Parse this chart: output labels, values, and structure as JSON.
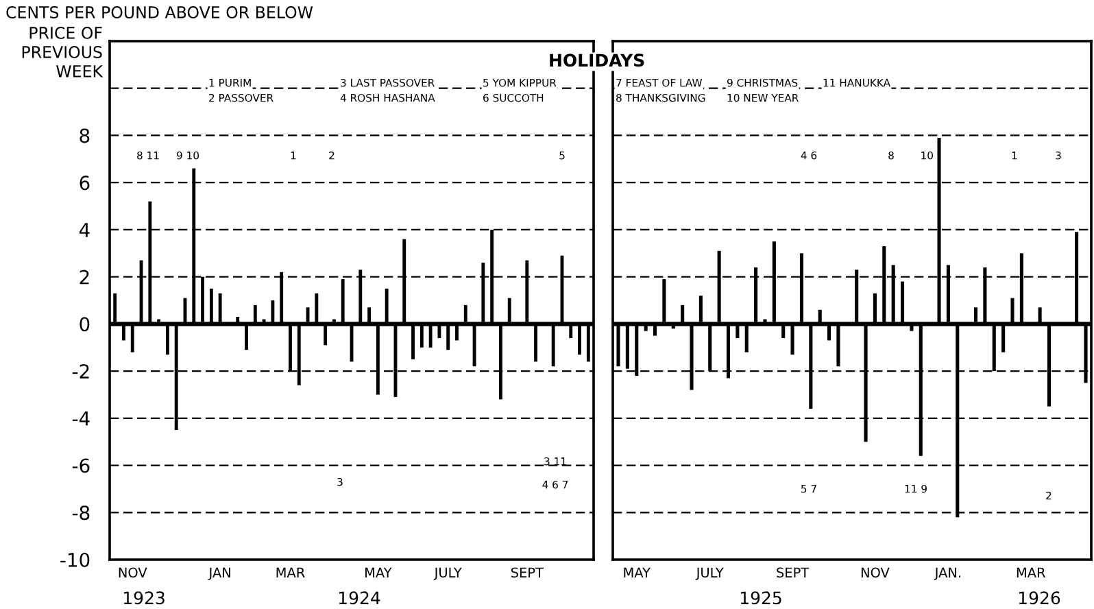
{
  "chart_data": [
    {
      "type": "bar",
      "ylabel": "CENTS PER POUND ABOVE OR BELOW\nPRICE OF\nPREVIOUS\nWEEK",
      "categories": [
        null,
        null,
        "NOV",
        null,
        null,
        null,
        null,
        null,
        null,
        null,
        null,
        null,
        "JAN",
        null,
        null,
        null,
        null,
        null,
        null,
        null,
        "MAR",
        null,
        null,
        null,
        null,
        null,
        null,
        null,
        null,
        null,
        "MAY",
        null,
        null,
        null,
        null,
        null,
        null,
        null,
        "JULY",
        null,
        null,
        null,
        null,
        null,
        null,
        null,
        null,
        "SEPT",
        null,
        null,
        null,
        null,
        null,
        null,
        null
      ],
      "values": [
        1.3,
        -0.7,
        -1.2,
        2.7,
        5.2,
        0.2,
        -1.3,
        -4.5,
        1.1,
        6.6,
        2.0,
        1.5,
        1.3,
        null,
        0.3,
        -1.1,
        0.8,
        0.2,
        1.0,
        2.2,
        -2.0,
        -2.6,
        0.7,
        1.3,
        -0.9,
        0.2,
        1.9,
        -1.6,
        2.3,
        0.7,
        -3.0,
        1.5,
        -3.1,
        3.6,
        -1.5,
        -1.0,
        -1.0,
        -0.6,
        -1.1,
        -0.7,
        0.8,
        -1.8,
        2.6,
        4.0,
        -3.2,
        1.1,
        null,
        2.7,
        -1.6,
        0,
        -1.8,
        2.9,
        -0.6,
        -1.3,
        -1.6
      ],
      "color": "#000000",
      "ylim": [
        -10,
        12
      ],
      "yticks": [
        -10,
        -8,
        -6,
        -4,
        -2,
        0,
        2,
        4,
        6,
        8,
        {
          "value": 10,
          "label": null
        }
      ],
      "grid": "y",
      "ref_lines": [
        {
          "axis": "y",
          "value": 0
        }
      ],
      "annotations": [
        "HOLIDAYS",
        "1 PURIM",
        "2 PASSOVER",
        "3 LAST PASSOVER",
        "4 ROSH HASHANA",
        "5 YOM KIPPUR",
        "6 SUCCOTH",
        "7 FEAST OF LAW",
        "8 THANKSGIVING",
        "9 CHRISTMAS",
        "10 NEW YEAR",
        "11 HANUKKA",
        "1923",
        "1924",
        "8 11",
        "9 10",
        "1",
        "2",
        "5",
        "3",
        "3 11",
        "4 6 7"
      ]
    },
    {
      "type": "bar",
      "categories": [
        null,
        null,
        "MAY",
        null,
        null,
        null,
        null,
        null,
        null,
        null,
        "JULY",
        null,
        null,
        null,
        null,
        null,
        null,
        null,
        null,
        "SEPT",
        null,
        null,
        null,
        null,
        null,
        null,
        null,
        null,
        "NOV",
        null,
        null,
        null,
        null,
        null,
        null,
        null,
        "JAN.",
        null,
        null,
        null,
        null,
        null,
        null,
        null,
        null,
        "MAR",
        null,
        null,
        null,
        null,
        null,
        null
      ],
      "values": [
        -1.8,
        -1.9,
        -2.2,
        -0.3,
        -0.5,
        1.9,
        -0.2,
        0.8,
        -2.8,
        1.2,
        -2.0,
        3.1,
        -2.3,
        -0.6,
        -1.2,
        2.4,
        0.2,
        3.5,
        -0.6,
        -1.3,
        3.0,
        -3.6,
        0.6,
        -0.7,
        -1.8,
        0,
        2.3,
        -5.0,
        1.3,
        3.3,
        2.5,
        1.8,
        -0.3,
        -5.6,
        0,
        7.9,
        2.5,
        -8.2,
        0,
        0.7,
        2.4,
        -2.0,
        -1.2,
        1.1,
        3.0,
        0,
        0.7,
        -3.5,
        0,
        0,
        3.9,
        -2.5
      ],
      "color": "#000000",
      "ylim": [
        -10,
        12
      ],
      "yticks": [
        -10,
        -8,
        -6,
        -4,
        -2,
        0,
        2,
        4,
        6,
        8,
        {
          "value": 10,
          "label": null
        }
      ],
      "grid": "y",
      "tick_labels": "x",
      "ref_lines": [
        {
          "axis": "y",
          "value": 0
        }
      ],
      "annotations": [
        "1925",
        "1926",
        "4 6",
        "8",
        "10",
        "1",
        "3",
        "5 7",
        "11 9",
        "2"
      ]
    }
  ]
}
